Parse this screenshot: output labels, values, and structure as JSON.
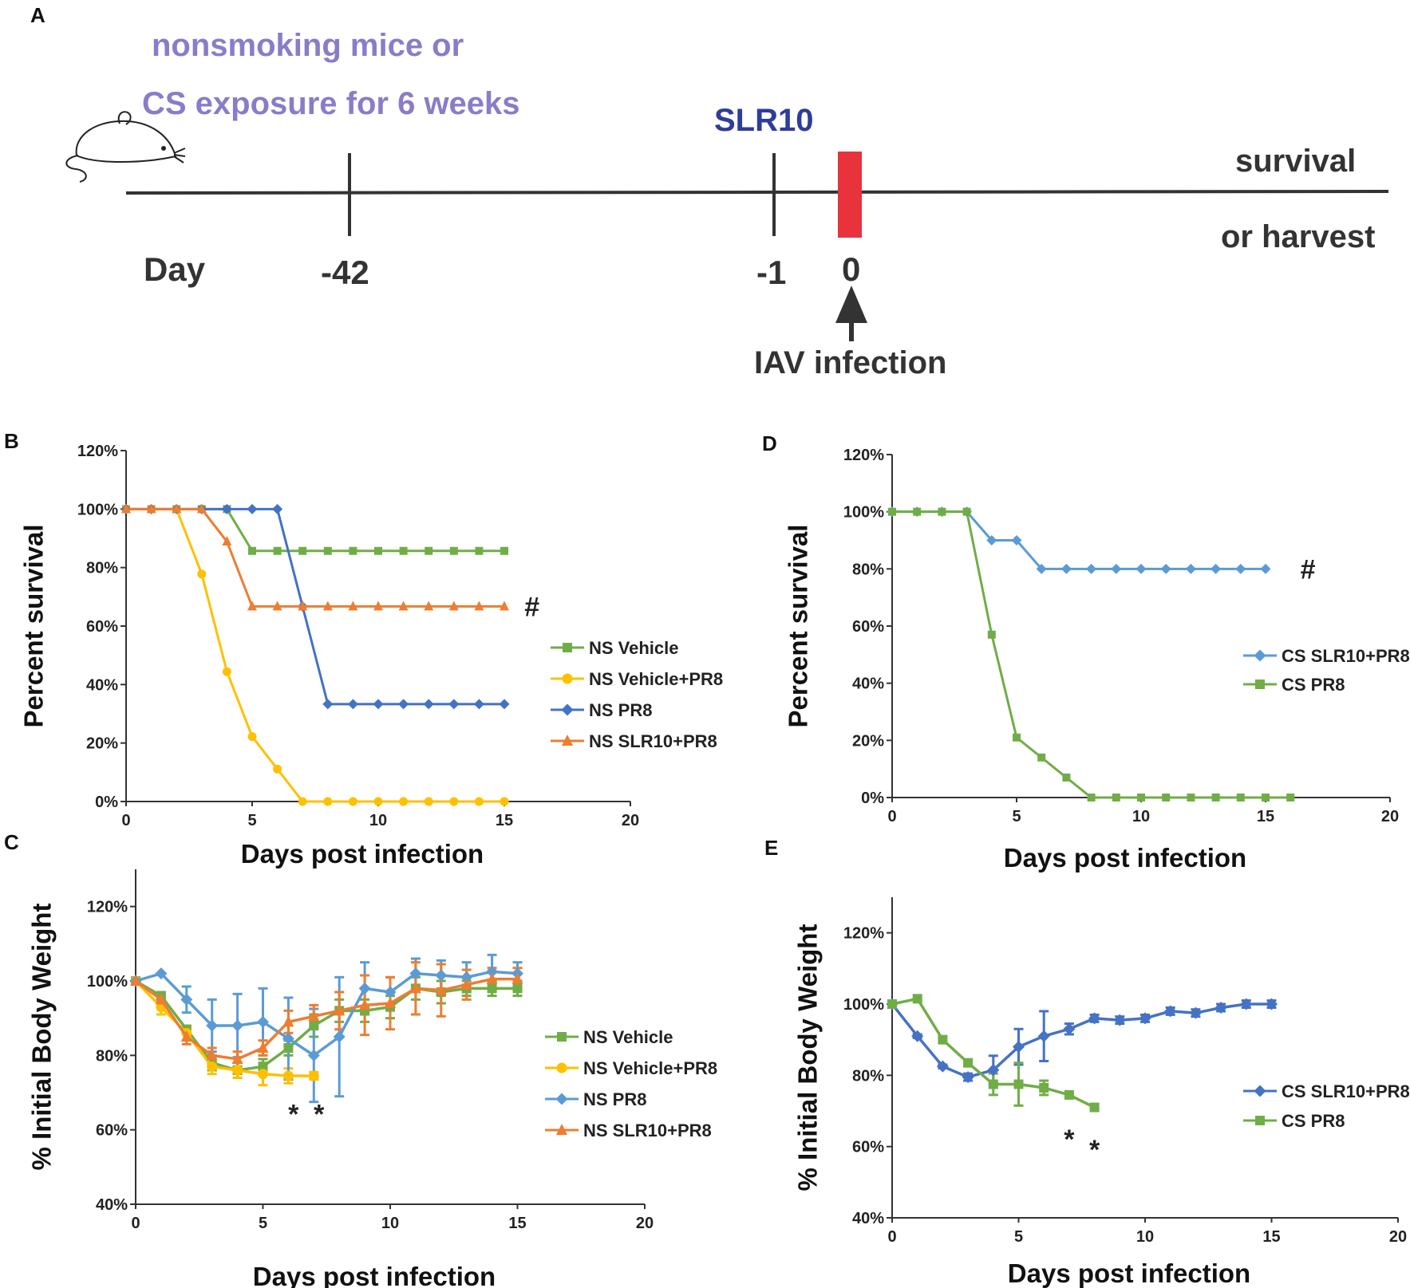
{
  "timeline": {
    "panel_label": "A",
    "line1": "nonsmoking mice or",
    "line2": "CS exposure for 6 weeks",
    "treatment": "SLR10",
    "outcome1": "survival",
    "outcome2": "or harvest",
    "day_label": "Day",
    "day_m42": "-42",
    "day_m1": "-1",
    "day_0": "0",
    "infection": "IAV infection",
    "colors": {
      "purple": "#8a7cc8",
      "blue": "#2e3c9a",
      "infection_bar": "#e8333c"
    }
  },
  "chart_data": [
    {
      "id": "B",
      "panel_label": "B",
      "type": "line",
      "ylabel": "Percent survival",
      "xlabel": "Days post infection",
      "xlim": [
        0,
        20
      ],
      "ylim": [
        0,
        120
      ],
      "xticks": [
        "0",
        "5",
        "10",
        "15",
        "20"
      ],
      "yticks": [
        "0%",
        "20%",
        "40%",
        "60%",
        "80%",
        "100%",
        "120%"
      ],
      "annotations": [
        {
          "text": "#",
          "x": 16.1,
          "y": 66.7
        }
      ],
      "series": [
        {
          "name": "NS Vehicle",
          "color": "#70ad47",
          "marker": "square",
          "x": [
            0,
            1,
            2,
            3,
            4,
            5,
            6,
            7,
            8,
            9,
            10,
            11,
            12,
            13,
            14,
            15
          ],
          "y": [
            100,
            100,
            100,
            100,
            100,
            85.7,
            85.7,
            85.7,
            85.7,
            85.7,
            85.7,
            85.7,
            85.7,
            85.7,
            85.7,
            85.7
          ]
        },
        {
          "name": "NS Vehicle+PR8",
          "color": "#ffc000",
          "marker": "circle",
          "x": [
            0,
            1,
            2,
            3,
            4,
            5,
            6,
            7,
            8,
            9,
            10,
            11,
            12,
            13,
            14,
            15
          ],
          "y": [
            100,
            100,
            100,
            77.8,
            44.4,
            22.2,
            11.1,
            0,
            0,
            0,
            0,
            0,
            0,
            0,
            0,
            0
          ]
        },
        {
          "name": "NS PR8",
          "color": "#4472c4",
          "marker": "diamond",
          "x": [
            0,
            1,
            2,
            3,
            4,
            5,
            6,
            7,
            8,
            9,
            10,
            11,
            12,
            13,
            14,
            15
          ],
          "y": [
            100,
            100,
            100,
            100,
            100,
            100,
            100,
            66.7,
            33.3,
            33.3,
            33.3,
            33.3,
            33.3,
            33.3,
            33.3,
            33.3
          ]
        },
        {
          "name": "NS SLR10+PR8",
          "color": "#ed7d31",
          "marker": "triangle",
          "x": [
            0,
            1,
            2,
            3,
            4,
            5,
            6,
            7,
            8,
            9,
            10,
            11,
            12,
            13,
            14,
            15
          ],
          "y": [
            100,
            100,
            100,
            100,
            88.9,
            66.7,
            66.7,
            66.7,
            66.7,
            66.7,
            66.7,
            66.7,
            66.7,
            66.7,
            66.7,
            66.7
          ]
        }
      ]
    },
    {
      "id": "C",
      "panel_label": "C",
      "type": "line",
      "ylabel": "% Initial Body Weight",
      "xlabel": "Days post infection",
      "xlim": [
        0,
        20
      ],
      "ylim": [
        40,
        130
      ],
      "xticks": [
        "0",
        "5",
        "10",
        "15",
        "20"
      ],
      "yticks": [
        "40%",
        "60%",
        "80%",
        "100%",
        "120%"
      ],
      "annotations": [
        {
          "text": "*",
          "x": 6.2,
          "y": 66
        },
        {
          "text": "*",
          "x": 7.2,
          "y": 66
        }
      ],
      "series": [
        {
          "name": "NS Vehicle",
          "color": "#70ad47",
          "marker": "square",
          "x": [
            0,
            1,
            2,
            3,
            4,
            5,
            6,
            7,
            8,
            9,
            10,
            11,
            12,
            13,
            14,
            15
          ],
          "y": [
            100,
            96,
            87,
            78,
            76,
            77,
            82,
            88,
            92,
            92,
            93,
            98,
            97,
            98,
            98,
            98
          ],
          "err": [
            0,
            1,
            1,
            2,
            2,
            2,
            2,
            3,
            3,
            3,
            3,
            3,
            3,
            2,
            2,
            2
          ]
        },
        {
          "name": "NS Vehicle+PR8",
          "color": "#ffc000",
          "marker": "circle",
          "x": [
            0,
            1,
            2,
            3,
            4,
            5,
            6,
            7
          ],
          "y": [
            100,
            93,
            86,
            77,
            76,
            75,
            74.5,
            74.5
          ],
          "err": [
            0,
            2,
            2,
            2,
            2,
            3,
            2,
            1
          ]
        },
        {
          "name": "NS PR8",
          "color": "#5b9bd5",
          "marker": "diamond",
          "x": [
            0,
            1,
            2,
            3,
            4,
            5,
            6,
            7,
            8,
            9,
            10,
            11,
            12,
            13,
            14,
            15
          ],
          "y": [
            100,
            102,
            95,
            88,
            88,
            89,
            84.5,
            80,
            85,
            98,
            97,
            102,
            101.5,
            101,
            102.5,
            102
          ],
          "err": [
            0,
            0,
            3.5,
            7,
            8.5,
            9,
            11,
            12.5,
            16,
            7,
            4,
            4,
            4,
            4,
            4.5,
            3
          ]
        },
        {
          "name": "NS SLR10+PR8",
          "color": "#ed7d31",
          "marker": "triangle",
          "x": [
            0,
            1,
            2,
            3,
            4,
            5,
            6,
            7,
            8,
            9,
            10,
            11,
            12,
            13,
            14,
            15
          ],
          "y": [
            100,
            95,
            85,
            80,
            79,
            82,
            89,
            90.5,
            92,
            93.5,
            94,
            98,
            97.5,
            99,
            100.5,
            100.5
          ],
          "err": [
            0,
            1,
            2,
            2,
            2,
            2,
            3,
            3,
            5,
            8,
            7,
            7,
            7,
            4,
            3,
            3
          ]
        }
      ]
    },
    {
      "id": "D",
      "panel_label": "D",
      "type": "line",
      "ylabel": "Percent survival",
      "xlabel": "Days post infection",
      "xlim": [
        0,
        20
      ],
      "ylim": [
        0,
        120
      ],
      "xticks": [
        "0",
        "5",
        "10",
        "15",
        "20"
      ],
      "yticks": [
        "0%",
        "20%",
        "40%",
        "60%",
        "80%",
        "100%",
        "120%"
      ],
      "annotations": [
        {
          "text": "#",
          "x": 16.7,
          "y": 80
        }
      ],
      "series": [
        {
          "name": "CS SLR10+PR8",
          "color": "#5b9bd5",
          "marker": "diamond",
          "x": [
            0,
            1,
            2,
            3,
            4,
            5,
            6,
            7,
            8,
            9,
            10,
            11,
            12,
            13,
            14,
            15
          ],
          "y": [
            100,
            100,
            100,
            100,
            90,
            90,
            80,
            80,
            80,
            80,
            80,
            80,
            80,
            80,
            80,
            80
          ]
        },
        {
          "name": "CS PR8",
          "color": "#70ad47",
          "marker": "square",
          "x": [
            0,
            1,
            2,
            3,
            4,
            5,
            6,
            7,
            8,
            9,
            10,
            11,
            12,
            13,
            14,
            15,
            16
          ],
          "y": [
            100,
            100,
            100,
            100,
            57,
            21,
            14,
            7,
            0,
            0,
            0,
            0,
            0,
            0,
            0,
            0,
            0
          ]
        }
      ]
    },
    {
      "id": "E",
      "panel_label": "E",
      "type": "line",
      "ylabel": "% Initial Body Weight",
      "xlabel": "Days post infection",
      "xlim": [
        0,
        20
      ],
      "ylim": [
        40,
        130
      ],
      "xticks": [
        "0",
        "5",
        "10",
        "15",
        "20"
      ],
      "yticks": [
        "40%",
        "60%",
        "80%",
        "100%",
        "120%"
      ],
      "annotations": [
        {
          "text": "*",
          "x": 7,
          "y": 64
        },
        {
          "text": "*",
          "x": 8,
          "y": 61
        }
      ],
      "series": [
        {
          "name": "CS SLR10+PR8",
          "color": "#4472c4",
          "marker": "diamond",
          "x": [
            0,
            1,
            2,
            3,
            4,
            5,
            6,
            7,
            8,
            9,
            10,
            11,
            12,
            13,
            14,
            15
          ],
          "y": [
            100,
            91,
            82.5,
            79.5,
            81.5,
            88,
            91,
            93,
            96,
            95.5,
            96,
            98,
            97.5,
            99,
            100,
            100
          ],
          "err": [
            0,
            0.5,
            0.5,
            1,
            4,
            5,
            7,
            1.5,
            1,
            1,
            1,
            1,
            1,
            1,
            1,
            1
          ]
        },
        {
          "name": "CS PR8",
          "color": "#70ad47",
          "marker": "square",
          "x": [
            0,
            1,
            2,
            3,
            4,
            5,
            6,
            7,
            8
          ],
          "y": [
            100,
            101.5,
            90,
            83.5,
            77.5,
            77.5,
            76.5,
            74.5,
            71
          ],
          "err": [
            0,
            0,
            0,
            0,
            3,
            6,
            2,
            0,
            0
          ]
        }
      ]
    }
  ]
}
